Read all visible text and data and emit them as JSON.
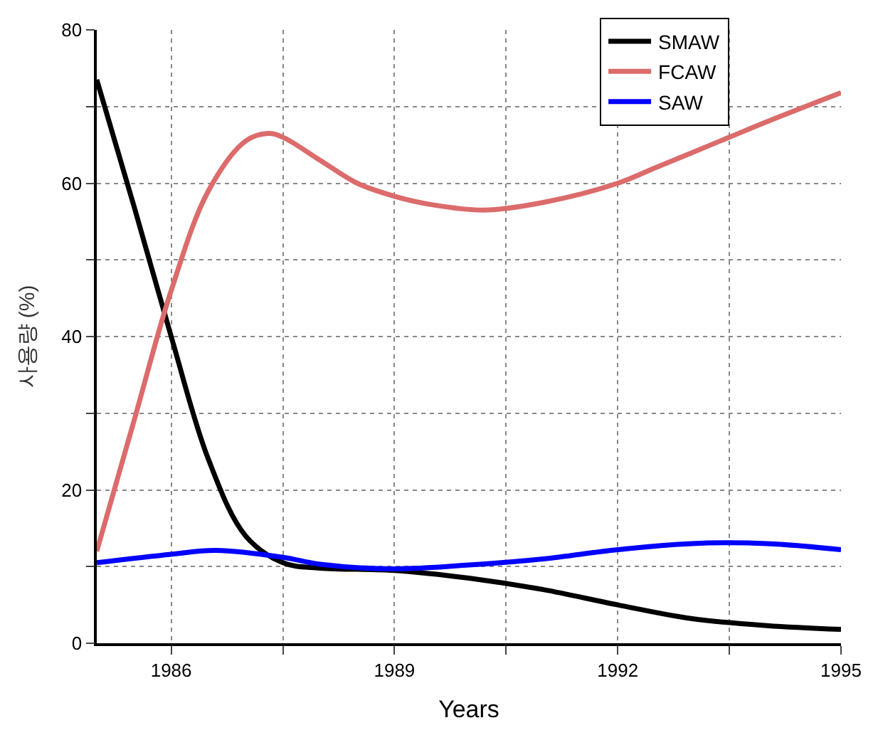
{
  "chart_data": {
    "type": "line",
    "xlabel": "Years",
    "ylabel": "사용량 (%)",
    "xlim": [
      1985,
      1995
    ],
    "xticks": [
      1986,
      {
        "value": 1987.5,
        "label": null
      },
      1989,
      {
        "value": 1990.5,
        "label": null
      },
      1992,
      {
        "value": 1993.5,
        "label": null
      },
      1995
    ],
    "ylim": [
      0,
      80
    ],
    "yticks": [
      0,
      {
        "value": 10,
        "label": null
      },
      20,
      {
        "value": 30,
        "label": null
      },
      40,
      {
        "value": 50,
        "label": null
      },
      60,
      {
        "value": 70,
        "label": null
      },
      80
    ],
    "grid": true,
    "legend": "top right",
    "marker": "none",
    "line_style": "solid",
    "series": [
      {
        "name": "SMAW",
        "color": "#000000",
        "x": [
          1985,
          1985.5,
          1986,
          1986.5,
          1987,
          1987.5,
          1988,
          1989,
          1990,
          1991,
          1992,
          1993,
          1994,
          1995
        ],
        "values": [
          73.5,
          57,
          40,
          24,
          14,
          10.5,
          9.8,
          9.5,
          8.5,
          7,
          5,
          3.2,
          2.3,
          1.8
        ]
      },
      {
        "name": "FCAW",
        "color": "#dc6b6b",
        "x": [
          1985,
          1985.5,
          1986,
          1986.5,
          1987,
          1987.3,
          1987.5,
          1988,
          1988.5,
          1989,
          1989.5,
          1990.2,
          1991,
          1992,
          1992.5,
          1993,
          1993.5,
          1994,
          1995
        ],
        "values": [
          12,
          29,
          46,
          59,
          65.5,
          66.5,
          66,
          63,
          60,
          58.3,
          57.2,
          56.5,
          57.5,
          60,
          62,
          64,
          66,
          68,
          71.8
        ]
      },
      {
        "name": "SAW",
        "color": "#0000ff",
        "x": [
          1985,
          1986,
          1986.6,
          1987.5,
          1988,
          1989,
          1990,
          1991,
          1992,
          1993,
          1994,
          1995
        ],
        "values": [
          10.5,
          11.6,
          12.1,
          11.2,
          10.3,
          9.7,
          10.2,
          11,
          12.2,
          13,
          13,
          12.2
        ]
      }
    ]
  }
}
